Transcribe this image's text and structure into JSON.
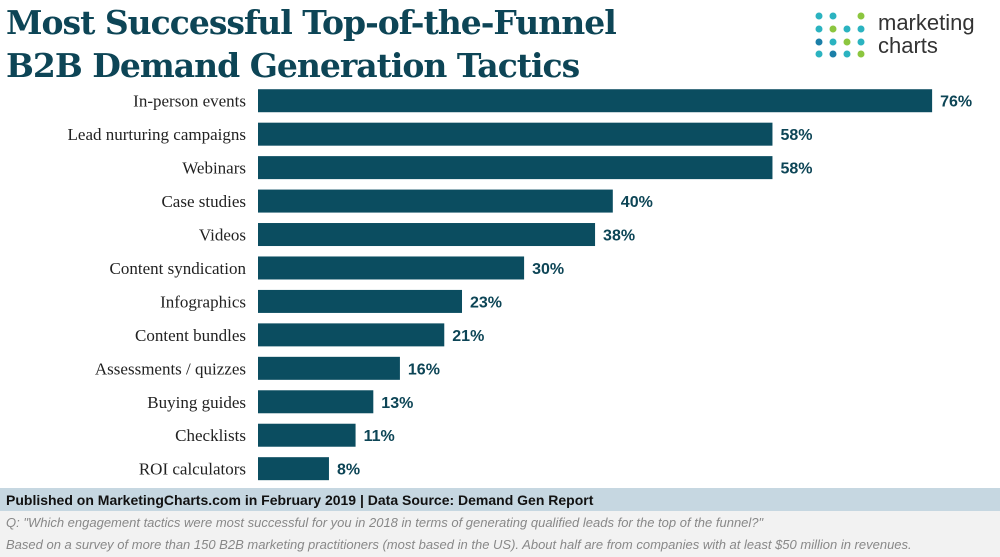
{
  "chart_data": {
    "type": "bar",
    "orientation": "horizontal",
    "title": [
      "Most Successful Top-of-the-Funnel",
      "B2B Demand Generation Tactics"
    ],
    "categories": [
      "In-person events",
      "Lead nurturing campaigns",
      "Webinars",
      "Case studies",
      "Videos",
      "Content syndication",
      "Infographics",
      "Content bundles",
      "Assessments / quizzes",
      "Buying guides",
      "Checklists",
      "ROI calculators"
    ],
    "values": [
      76,
      58,
      58,
      40,
      38,
      30,
      23,
      21,
      16,
      13,
      11,
      8
    ],
    "value_labels": [
      "76%",
      "58%",
      "58%",
      "40%",
      "38%",
      "30%",
      "23%",
      "21%",
      "16%",
      "13%",
      "11%",
      "8%"
    ],
    "color": "#0b4d60"
  },
  "logo": [
    "marketing",
    "charts"
  ],
  "footer": {
    "source": "Published on MarketingCharts.com in February 2019 | Data Source: Demand Gen Report",
    "question": "Q: \"Which engagement tactics were most successful for you in 2018 in terms of generating qualified leads for the top of the funnel?\"",
    "note": "Based on a survey of more than 150 B2B marketing practitioners (most based in the US). About half are from companies with at least $50 million in revenues."
  }
}
